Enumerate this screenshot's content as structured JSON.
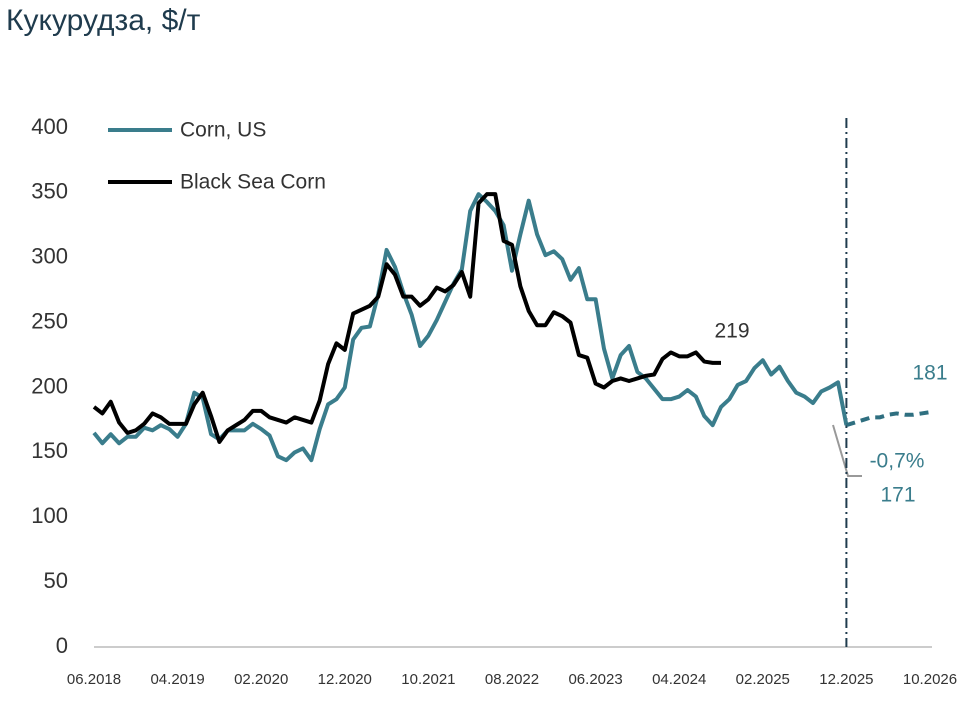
{
  "chart_data": {
    "type": "line",
    "title": "Кукурудза, $/т",
    "categories": [
      "06.2018",
      null,
      null,
      null,
      null,
      null,
      null,
      null,
      null,
      null,
      "04.2019",
      null,
      null,
      null,
      null,
      null,
      null,
      null,
      null,
      null,
      "02.2020",
      null,
      null,
      null,
      null,
      null,
      null,
      null,
      null,
      null,
      "12.2020",
      null,
      null,
      null,
      null,
      null,
      null,
      null,
      null,
      null,
      "10.2021",
      null,
      null,
      null,
      null,
      null,
      null,
      null,
      null,
      null,
      "08.2022",
      null,
      null,
      null,
      null,
      null,
      null,
      null,
      null,
      null,
      "06.2023",
      null,
      null,
      null,
      null,
      null,
      null,
      null,
      null,
      null,
      "04.2024",
      null,
      null,
      null,
      null,
      null,
      null,
      null,
      null,
      null,
      "02.2025",
      null,
      null,
      null,
      null,
      null,
      null,
      null,
      null,
      null,
      "12.2025",
      null,
      null,
      null,
      null,
      null,
      null,
      null,
      null,
      null,
      "10.2026"
    ],
    "series": [
      {
        "name": "Corn, US",
        "color": "#3a7d8c",
        "style": "solid",
        "values": [
          165,
          157,
          164,
          157,
          162,
          162,
          169,
          167,
          171,
          168,
          162,
          172,
          196,
          192,
          164,
          160,
          167,
          167,
          167,
          172,
          168,
          163,
          147,
          144,
          150,
          153,
          144,
          168,
          187,
          191,
          200,
          237,
          246,
          247,
          272,
          306,
          293,
          273,
          256,
          232,
          240,
          252,
          266,
          280,
          291,
          336,
          349,
          343,
          336,
          325,
          290,
          318,
          344,
          318,
          302,
          305,
          299,
          283,
          292,
          268,
          268,
          230,
          207,
          225,
          232,
          212,
          207,
          199,
          191,
          191,
          193,
          198,
          193,
          178,
          171,
          185,
          191,
          202,
          205,
          215,
          221,
          210,
          216,
          205,
          196,
          193,
          188,
          197,
          200,
          204,
          171,
          null,
          null,
          null,
          null,
          null,
          null,
          null,
          null,
          null,
          null
        ]
      },
      {
        "name": "Black Sea Corn",
        "color": "#000000",
        "style": "solid",
        "values": [
          185,
          180,
          189,
          173,
          165,
          167,
          172,
          180,
          177,
          172,
          172,
          172,
          187,
          196,
          178,
          158,
          167,
          171,
          175,
          182,
          182,
          177,
          175,
          173,
          177,
          175,
          173,
          190,
          218,
          234,
          229,
          257,
          260,
          263,
          270,
          295,
          287,
          270,
          270,
          263,
          268,
          277,
          274,
          279,
          289,
          270,
          342,
          349,
          349,
          313,
          310,
          278,
          259,
          248,
          248,
          258,
          255,
          250,
          225,
          223,
          203,
          200,
          205,
          207,
          205,
          207,
          209,
          210,
          222,
          227,
          224,
          224,
          227,
          220,
          219,
          219,
          null,
          null,
          null,
          null,
          null,
          null,
          null,
          null,
          null,
          null,
          null,
          null,
          null,
          null,
          null,
          null,
          null,
          null,
          null,
          null,
          null,
          null,
          null,
          null,
          null
        ]
      },
      {
        "color": "#2f6f80",
        "style": "dashed",
        "values": [
          null,
          null,
          null,
          null,
          null,
          null,
          null,
          null,
          null,
          null,
          null,
          null,
          null,
          null,
          null,
          null,
          null,
          null,
          null,
          null,
          null,
          null,
          null,
          null,
          null,
          null,
          null,
          null,
          null,
          null,
          null,
          null,
          null,
          null,
          null,
          null,
          null,
          null,
          null,
          null,
          null,
          null,
          null,
          null,
          null,
          null,
          null,
          null,
          null,
          null,
          null,
          null,
          null,
          null,
          null,
          null,
          null,
          null,
          null,
          null,
          null,
          null,
          null,
          null,
          null,
          null,
          null,
          null,
          null,
          null,
          null,
          null,
          null,
          null,
          null,
          null,
          null,
          null,
          null,
          null,
          null,
          null,
          null,
          null,
          null,
          null,
          null,
          null,
          null,
          null,
          171,
          173,
          175,
          177,
          177,
          179,
          180,
          179,
          179,
          180,
          181
        ]
      }
    ],
    "annotations": [
      "-0,7%"
    ],
    "vline": "12.2025",
    "ylim": [
      0,
      400
    ],
    "yticks": [
      0,
      50,
      100,
      150,
      200,
      250,
      300,
      350,
      400
    ],
    "grid": false
  }
}
